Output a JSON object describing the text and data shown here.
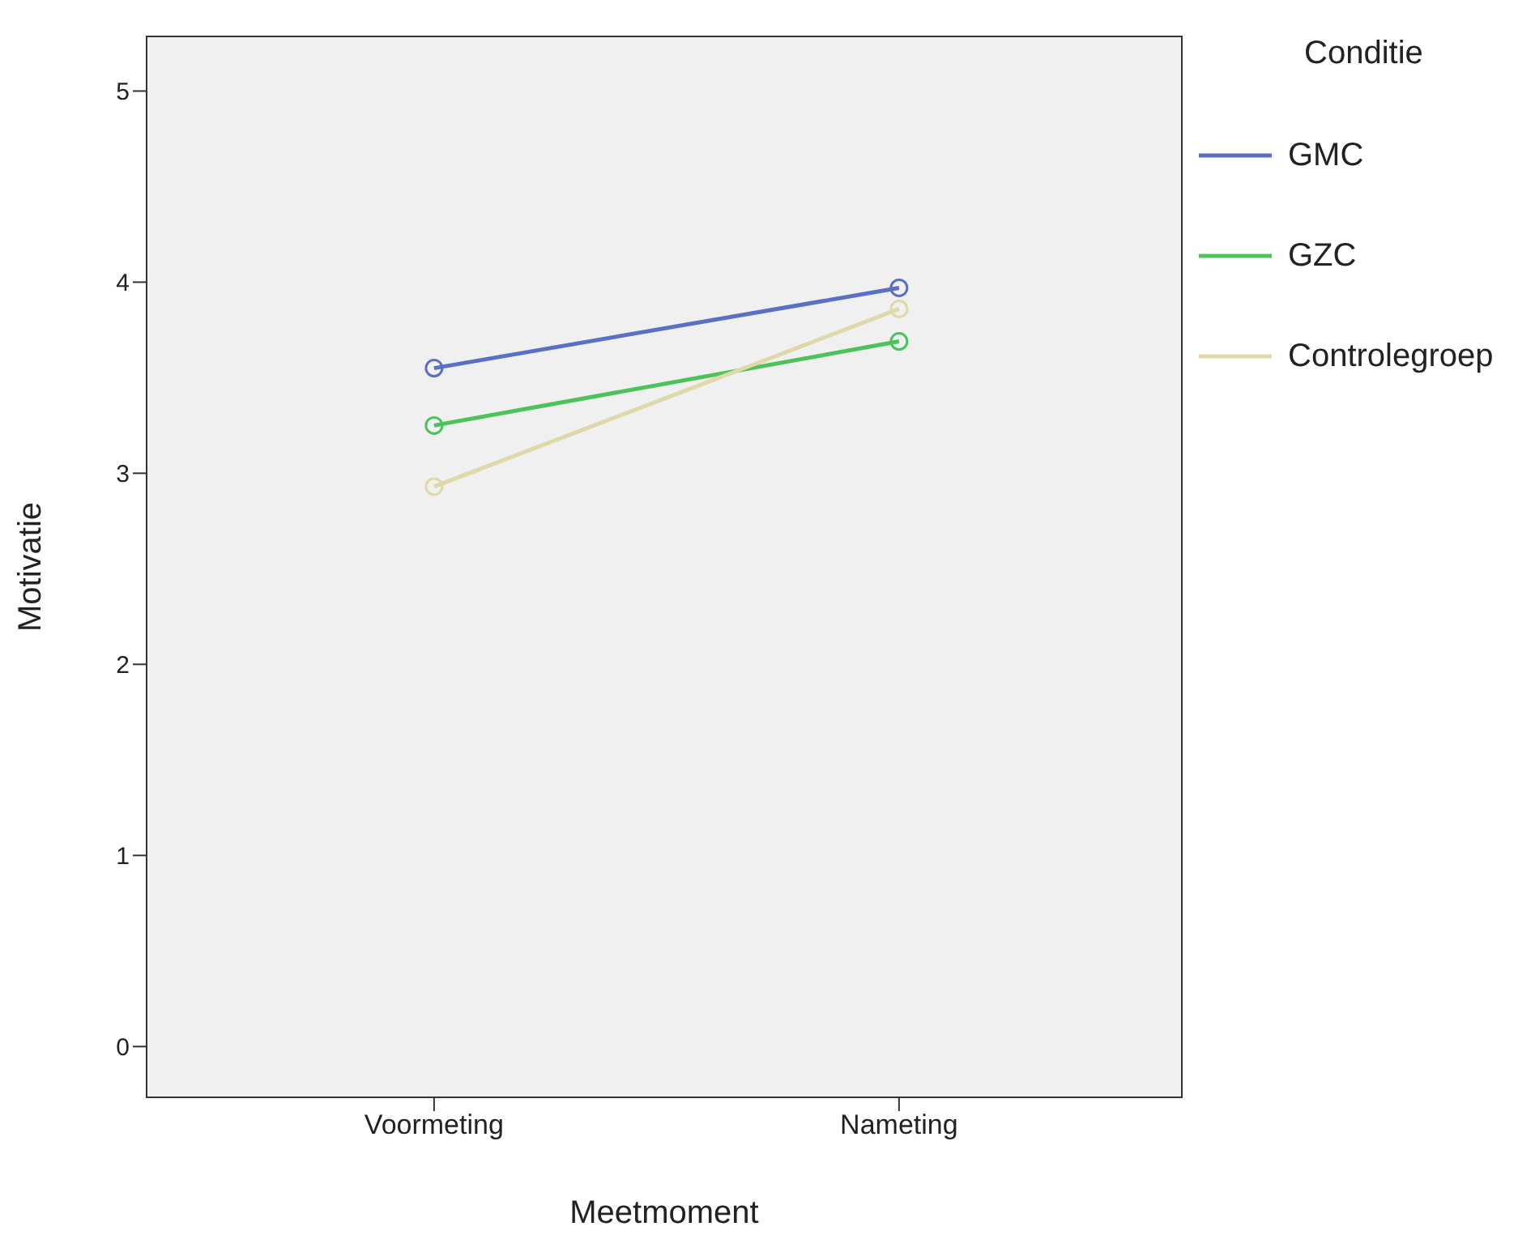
{
  "chart_data": {
    "type": "line",
    "xlabel": "Meetmoment",
    "ylabel": "Motivatie",
    "legend_title": "Conditie",
    "categories": [
      "Voormeting",
      "Nameting"
    ],
    "series": [
      {
        "name": "GMC",
        "color": "#5b6fc4",
        "values": [
          3.55,
          3.97
        ]
      },
      {
        "name": "GZC",
        "color": "#4cc35a",
        "values": [
          3.25,
          3.69
        ]
      },
      {
        "name": "Controlegroep",
        "color": "#e0d8a8",
        "values": [
          2.93,
          3.86
        ]
      }
    ],
    "ylim": [
      -0.27,
      5.29
    ],
    "yticks": [
      0,
      1,
      2,
      3,
      4,
      5
    ],
    "grid": false,
    "legend": "top right",
    "marker": "circle",
    "line_style": "solid"
  }
}
